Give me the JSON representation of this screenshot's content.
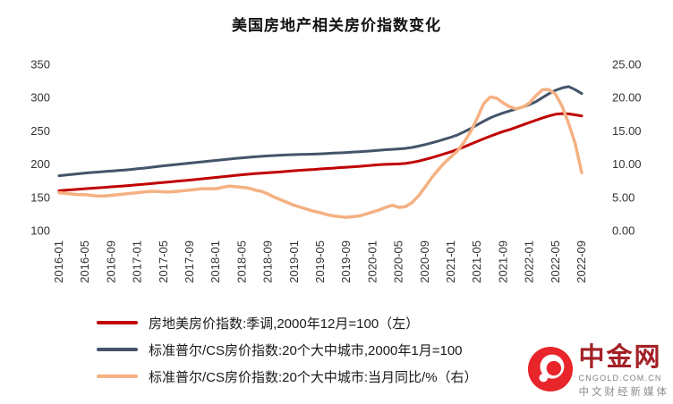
{
  "title": "美国房地产相关房价指数变化",
  "chart_data": {
    "type": "line",
    "title": "美国房地产相关房价指数变化",
    "frequency": "monthly",
    "x_start": "2016-01",
    "x_end": "2022-09",
    "x_tick_labels": [
      "2016-01",
      "2016-05",
      "2016-09",
      "2017-01",
      "2017-05",
      "2017-09",
      "2018-01",
      "2018-05",
      "2018-09",
      "2019-01",
      "2019-05",
      "2019-09",
      "2020-01",
      "2020-05",
      "2020-09",
      "2021-01",
      "2021-05",
      "2021-09",
      "2022-01",
      "2022-05",
      "2022-09"
    ],
    "left_axis": {
      "min": 100,
      "max": 350,
      "tick_step": 50,
      "tick_labels": [
        "350",
        "300",
        "250",
        "200",
        "150",
        "100"
      ]
    },
    "right_axis": {
      "min": 0,
      "max": 25,
      "tick_step": 5,
      "tick_labels": [
        "25.00",
        "20.00",
        "15.00",
        "10.00",
        "5.00",
        "0.00"
      ]
    },
    "grid": false,
    "legend_position": "bottom",
    "series": [
      {
        "name": "房地美房价指数:季调,2000年12月=100（左）",
        "axis": "left",
        "color": "#C00000",
        "values": [
          160.0,
          160.8,
          161.5,
          162.2,
          163.0,
          163.7,
          164.4,
          165.1,
          165.8,
          166.5,
          167.2,
          168.0,
          168.8,
          169.7,
          170.6,
          171.5,
          172.4,
          173.3,
          174.2,
          175.1,
          176.0,
          177.0,
          178.0,
          179.0,
          180.0,
          181.0,
          182.0,
          183.0,
          184.0,
          184.8,
          185.6,
          186.4,
          187.1,
          187.8,
          188.5,
          189.2,
          190.0,
          190.7,
          191.4,
          192.0,
          192.7,
          193.4,
          194.0,
          194.7,
          195.3,
          196.0,
          196.7,
          197.5,
          198.2,
          199.0,
          199.6,
          200.0,
          200.3,
          201.0,
          202.5,
          204.5,
          207.0,
          209.5,
          212.5,
          215.5,
          218.5,
          222.0,
          226.0,
          230.0,
          234.0,
          238.0,
          242.0,
          245.5,
          249.0,
          252.0,
          255.5,
          259.0,
          262.5,
          266.0,
          269.5,
          272.5,
          275.0,
          276.0,
          275.5,
          274.0,
          272.5
        ]
      },
      {
        "name": "标准普尔/CS房价指数:20个大中城市,2000年1月=100",
        "axis": "left",
        "color": "#44546A",
        "values": [
          182.5,
          183.5,
          184.5,
          185.5,
          186.5,
          187.3,
          188.0,
          188.8,
          189.5,
          190.3,
          191.0,
          192.0,
          193.0,
          194.0,
          195.2,
          196.3,
          197.4,
          198.5,
          199.5,
          200.5,
          201.5,
          202.5,
          203.5,
          204.5,
          205.5,
          206.5,
          207.5,
          208.5,
          209.4,
          210.2,
          211.0,
          211.7,
          212.3,
          212.9,
          213.4,
          213.8,
          214.2,
          214.5,
          214.8,
          215.1,
          215.5,
          216.0,
          216.5,
          217.0,
          217.5,
          218.1,
          218.7,
          219.3,
          220.0,
          220.8,
          221.6,
          222.2,
          222.8,
          223.7,
          225.0,
          227.0,
          229.3,
          231.8,
          234.5,
          237.5,
          240.5,
          244.0,
          248.5,
          253.5,
          259.0,
          264.5,
          269.5,
          273.5,
          277.0,
          280.0,
          283.0,
          286.0,
          289.5,
          294.0,
          300.0,
          306.0,
          311.0,
          314.5,
          316.5,
          312.0,
          306.0
        ]
      },
      {
        "name": "标准普尔/CS房价指数:20个大中城市:当月同比/%（右）",
        "axis": "right",
        "color": "#F4B183",
        "values": [
          5.7,
          5.6,
          5.5,
          5.4,
          5.4,
          5.3,
          5.2,
          5.2,
          5.3,
          5.4,
          5.5,
          5.6,
          5.7,
          5.8,
          5.9,
          5.9,
          5.8,
          5.8,
          5.9,
          6.0,
          6.1,
          6.2,
          6.3,
          6.3,
          6.3,
          6.5,
          6.7,
          6.6,
          6.5,
          6.4,
          6.1,
          5.9,
          5.5,
          5.0,
          4.6,
          4.2,
          3.8,
          3.5,
          3.2,
          2.9,
          2.7,
          2.4,
          2.2,
          2.1,
          2.0,
          2.1,
          2.2,
          2.5,
          2.8,
          3.1,
          3.5,
          3.8,
          3.5,
          3.6,
          4.2,
          5.2,
          6.5,
          7.9,
          9.1,
          10.2,
          11.1,
          12.0,
          13.3,
          14.9,
          16.9,
          19.1,
          20.1,
          19.9,
          19.2,
          18.6,
          18.3,
          18.6,
          19.2,
          20.3,
          21.2,
          21.2,
          20.5,
          18.7,
          16.1,
          13.1,
          8.7
        ]
      }
    ]
  },
  "watermark": {
    "brand": "中金网",
    "domain": "CNGOLD.COM.CN",
    "tagline": "中文财经新媒体",
    "logo_color": "#e8252a"
  }
}
